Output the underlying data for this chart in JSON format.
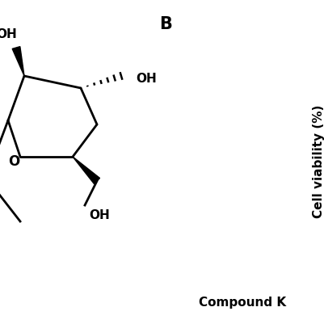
{
  "panel_label": "B",
  "compound_label": "Compound K",
  "y_axis_label": "Cell viability (%)",
  "bg_color": "#ffffff",
  "line_color": "#000000",
  "label_fontsize": 11,
  "panel_fontsize": 13,
  "figsize": [
    4.02,
    4.02
  ],
  "dpi": 100
}
